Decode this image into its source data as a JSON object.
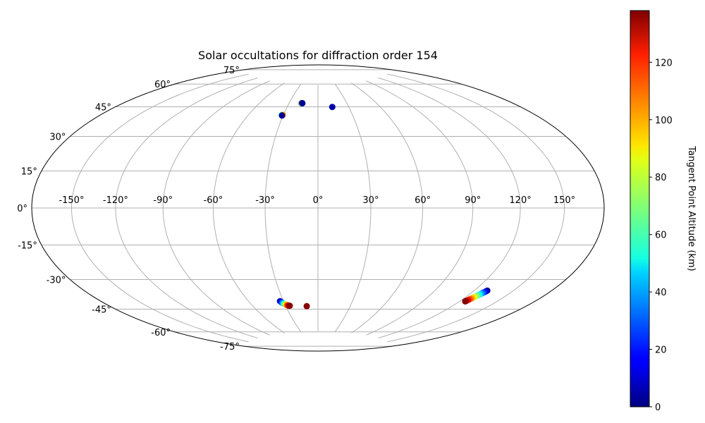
{
  "chart_data": {
    "type": "scatter",
    "projection": "hammer-aitoff",
    "title": "Solar occultations for diffraction order 154",
    "grid": true,
    "lon_ticks": [
      -150,
      -120,
      -90,
      -60,
      -30,
      0,
      30,
      60,
      90,
      120,
      150
    ],
    "lon_tick_labels": [
      "-150°",
      "-120°",
      "-90°",
      "-60°",
      "-30°",
      "0°",
      "30°",
      "60°",
      "90°",
      "120°",
      "150°"
    ],
    "lat_ticks": [
      75,
      60,
      45,
      30,
      15,
      0,
      -15,
      -30,
      -45,
      -60,
      -75
    ],
    "lat_tick_labels": [
      "75°",
      "60°",
      "45°",
      "30°",
      "15°",
      "0°",
      "-15°",
      "-30°",
      "-45°",
      "-60°",
      "-75°"
    ],
    "colorbar": {
      "label": "Tangent Point Altitude (km)",
      "min": 0,
      "max": 138,
      "ticks": [
        0,
        20,
        40,
        60,
        80,
        100,
        120
      ],
      "tick_labels": [
        "0",
        "20",
        "40",
        "60",
        "80",
        "100",
        "120"
      ],
      "colormap": "jet"
    },
    "points": [
      {
        "lon": -31,
        "lat": 54,
        "alt": 2
      },
      {
        "lon": -31.5,
        "lat": 54.2,
        "alt": 60
      },
      {
        "lon": -30.5,
        "lat": 54.4,
        "alt": 100
      },
      {
        "lon": -31,
        "lat": 54,
        "alt": 3
      },
      {
        "lon": -17.5,
        "lat": 62.2,
        "alt": 100
      },
      {
        "lon": -17,
        "lat": 62.2,
        "alt": 60
      },
      {
        "lon": -16.5,
        "lat": 62.3,
        "alt": 5
      },
      {
        "lon": -16.2,
        "lat": 62.2,
        "alt": 3
      },
      {
        "lon": 14,
        "lat": 59.8,
        "alt": 5
      },
      {
        "lon": -33,
        "lat": -54.4,
        "alt": 5
      },
      {
        "lon": -32.5,
        "lat": -54.8,
        "alt": 15
      },
      {
        "lon": -32,
        "lat": -55.3,
        "alt": 25
      },
      {
        "lon": -31.5,
        "lat": -55.6,
        "alt": 35
      },
      {
        "lon": -30.8,
        "lat": -56.0,
        "alt": 50
      },
      {
        "lon": -30.2,
        "lat": -56.3,
        "alt": 65
      },
      {
        "lon": -29.5,
        "lat": -56.6,
        "alt": 80
      },
      {
        "lon": -28.8,
        "lat": -56.9,
        "alt": 95
      },
      {
        "lon": -28.2,
        "lat": -57.1,
        "alt": 108
      },
      {
        "lon": -27.5,
        "lat": -57.3,
        "alt": 120
      },
      {
        "lon": -26.8,
        "lat": -57.4,
        "alt": 130
      },
      {
        "lon": -26.2,
        "lat": -57.5,
        "alt": 137
      },
      {
        "lon": -10.5,
        "lat": -58.0,
        "alt": 137
      },
      {
        "lon": 130,
        "lat": -41.5,
        "alt": 2
      },
      {
        "lon": 129.6,
        "lat": -42.0,
        "alt": 12
      },
      {
        "lon": 129.2,
        "lat": -42.5,
        "alt": 22
      },
      {
        "lon": 128.8,
        "lat": -43.0,
        "alt": 32
      },
      {
        "lon": 128.4,
        "lat": -43.5,
        "alt": 42
      },
      {
        "lon": 128.0,
        "lat": -44.0,
        "alt": 52
      },
      {
        "lon": 127.6,
        "lat": -44.5,
        "alt": 62
      },
      {
        "lon": 127.2,
        "lat": -45.0,
        "alt": 72
      },
      {
        "lon": 126.8,
        "lat": -45.5,
        "alt": 82
      },
      {
        "lon": 126.4,
        "lat": -46.0,
        "alt": 92
      },
      {
        "lon": 126.0,
        "lat": -46.5,
        "alt": 102
      },
      {
        "lon": 125.6,
        "lat": -47.0,
        "alt": 112
      },
      {
        "lon": 125.2,
        "lat": -47.5,
        "alt": 122
      },
      {
        "lon": 124.8,
        "lat": -48.0,
        "alt": 132
      },
      {
        "lon": 124.5,
        "lat": -48.3,
        "alt": 137
      }
    ]
  }
}
